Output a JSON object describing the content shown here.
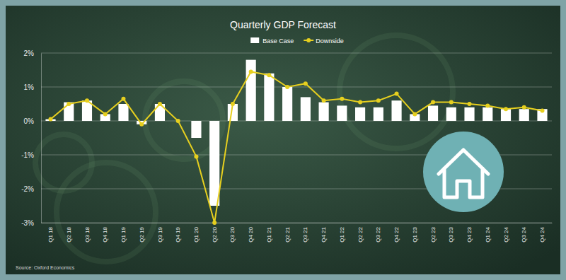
{
  "chart_data": {
    "type": "bar",
    "title": "Quarterly GDP Forecast",
    "categories": [
      "Q1 18",
      "Q2 18",
      "Q3 18",
      "Q4 18",
      "Q1 19",
      "Q2 19",
      "Q3 19",
      "Q4 19",
      "Q1 20",
      "Q2 20",
      "Q3 20",
      "Q4 20",
      "Q1 21",
      "Q2 21",
      "Q3 21",
      "Q4 21",
      "Q1 22",
      "Q2 22",
      "Q3 22",
      "Q4 22",
      "Q1 23",
      "Q2 23",
      "Q3 23",
      "Q4 23",
      "Q1 24",
      "Q2 24",
      "Q3 24",
      "Q4 24"
    ],
    "series": [
      {
        "name": "Base Case",
        "type": "bar",
        "color": "#ffffff",
        "values": [
          0.05,
          0.55,
          0.6,
          0.2,
          0.5,
          -0.1,
          0.5,
          0.0,
          -0.5,
          -2.5,
          0.5,
          1.8,
          1.4,
          1.0,
          0.7,
          0.55,
          0.45,
          0.4,
          0.4,
          0.6,
          0.2,
          0.45,
          0.4,
          0.4,
          0.4,
          0.35,
          0.35,
          0.35
        ]
      },
      {
        "name": "Downside",
        "type": "line",
        "color": "#e6cf1f",
        "marker": "circle",
        "values": [
          0.05,
          0.5,
          0.6,
          0.2,
          0.65,
          -0.1,
          0.5,
          0.0,
          -1.05,
          -3.0,
          0.5,
          1.45,
          1.35,
          1.0,
          1.1,
          0.6,
          0.65,
          0.55,
          0.6,
          0.8,
          0.2,
          0.55,
          0.55,
          0.5,
          0.45,
          0.35,
          0.4,
          0.3
        ]
      }
    ],
    "ylim": [
      -3,
      2
    ],
    "yticks": [
      {
        "value": 2,
        "label": "2%"
      },
      {
        "value": 1,
        "label": "1%"
      },
      {
        "value": 0,
        "label": "0%"
      },
      {
        "value": -1,
        "label": "-1%"
      },
      {
        "value": -2,
        "label": "-2%"
      },
      {
        "value": -3,
        "label": "-3%"
      }
    ],
    "grid": true,
    "legend": "top",
    "annotations": [
      "Source: Oxford Economics"
    ]
  }
}
